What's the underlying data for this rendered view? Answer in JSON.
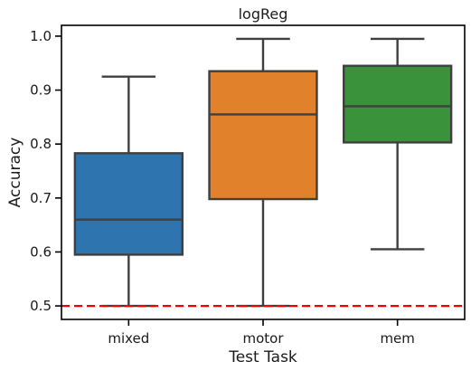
{
  "chart_data": {
    "type": "box",
    "title": "logReg",
    "xlabel": "Test Task",
    "ylabel": "Accuracy",
    "ylim": [
      0.475,
      1.02
    ],
    "yticks": [
      0.5,
      0.6,
      0.7,
      0.8,
      0.9,
      1.0
    ],
    "ytick_labels": [
      "0.5",
      "0.6",
      "0.7",
      "0.8",
      "0.9",
      "1.0"
    ],
    "categories": [
      "mixed",
      "motor",
      "mem"
    ],
    "boxes": [
      {
        "category": "mixed",
        "whislo": 0.5,
        "q1": 0.595,
        "med": 0.66,
        "q3": 0.783,
        "whishi": 0.925,
        "color": "#2e75b0"
      },
      {
        "category": "motor",
        "whislo": 0.5,
        "q1": 0.698,
        "med": 0.855,
        "q3": 0.935,
        "whishi": 0.995,
        "color": "#e1812c"
      },
      {
        "category": "mem",
        "whislo": 0.605,
        "q1": 0.803,
        "med": 0.87,
        "q3": 0.945,
        "whishi": 0.995,
        "color": "#3a923a"
      }
    ],
    "reference_line": {
      "y": 0.5,
      "style": "dashed",
      "color": "#ee0000"
    },
    "grid": false
  }
}
